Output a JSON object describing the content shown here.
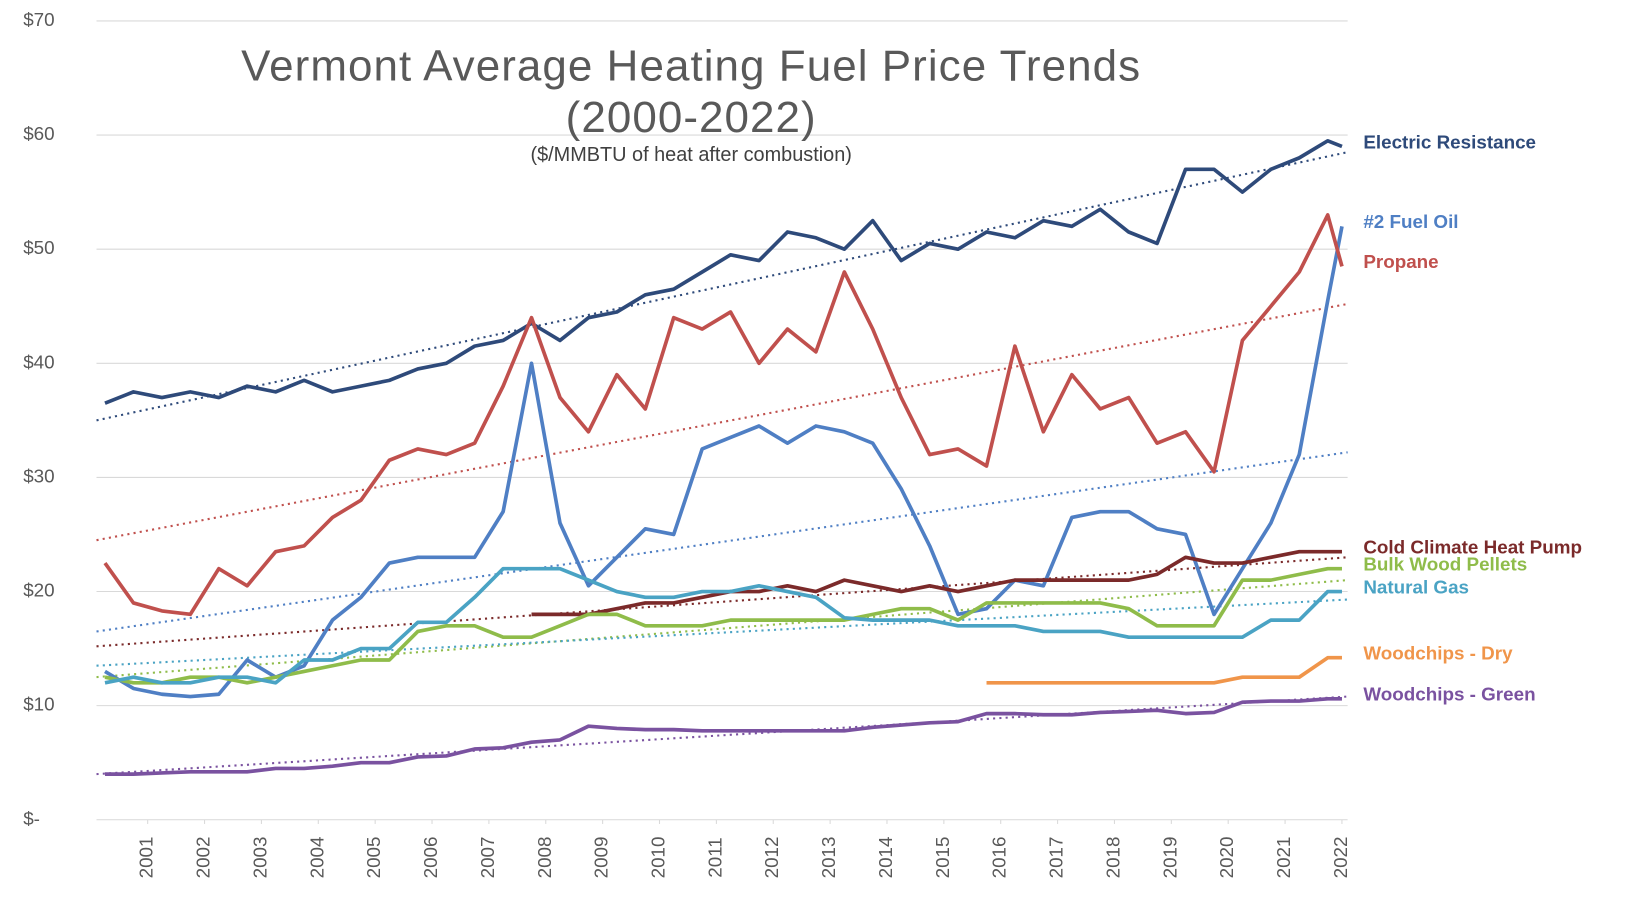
{
  "chart_data": {
    "type": "line",
    "title": [
      "Vermont Average  Heating Fuel Price Trends",
      "(2000-2022)"
    ],
    "subtitle": "($/MMBTU  of heat after combustion)",
    "x": [
      2000.25,
      2000.75,
      2001.25,
      2001.75,
      2002.25,
      2002.75,
      2003.25,
      2003.75,
      2004.25,
      2004.75,
      2005.25,
      2005.75,
      2006.25,
      2006.75,
      2007.25,
      2007.75,
      2008.25,
      2008.75,
      2009.25,
      2009.75,
      2010.25,
      2010.75,
      2011.25,
      2011.75,
      2012.25,
      2012.75,
      2013.25,
      2013.75,
      2014.25,
      2014.75,
      2015.25,
      2015.75,
      2016.25,
      2016.75,
      2017.25,
      2017.75,
      2018.25,
      2018.75,
      2019.25,
      2019.75,
      2020.25,
      2020.75,
      2021.25,
      2021.75,
      2022
    ],
    "xlim": [
      2000.1,
      2022.1
    ],
    "xticks": [
      2001,
      2002,
      2003,
      2004,
      2005,
      2006,
      2007,
      2008,
      2009,
      2010,
      2011,
      2012,
      2013,
      2014,
      2015,
      2016,
      2017,
      2018,
      2019,
      2020,
      2021,
      2022
    ],
    "ylim": [
      0,
      70
    ],
    "yticks": [
      {
        "value": 0,
        "label": "$-"
      },
      {
        "value": 10,
        "label": "$10"
      },
      {
        "value": 20,
        "label": "$20"
      },
      {
        "value": 30,
        "label": "$30"
      },
      {
        "value": 40,
        "label": "$40"
      },
      {
        "value": 50,
        "label": "$50"
      },
      {
        "value": 60,
        "label": "$60"
      },
      {
        "value": 70,
        "label": "$70"
      }
    ],
    "grid": true,
    "series": [
      {
        "name": "Electric Resistance",
        "color": "#2e4a7a",
        "trend": [
          35,
          58.5
        ],
        "values": [
          36.5,
          37.5,
          37,
          37.5,
          37,
          38,
          37.5,
          38.5,
          37.5,
          38,
          38.5,
          39.5,
          40,
          41.5,
          42,
          43.5,
          42,
          44,
          44.5,
          46,
          46.5,
          48,
          49.5,
          49,
          51.5,
          51,
          50,
          52.5,
          49,
          50.5,
          50,
          51.5,
          51,
          52.5,
          52,
          53.5,
          51.5,
          50.5,
          57,
          57,
          55,
          57,
          58,
          59.5,
          59
        ]
      },
      {
        "name": "#2 Fuel Oil",
        "color": "#4f7fc4",
        "trend": [
          16.5,
          32.2
        ],
        "values": [
          13,
          11.5,
          11,
          10.8,
          11,
          14,
          12.5,
          13.5,
          17.5,
          19.5,
          22.5,
          23,
          23,
          23,
          27,
          40,
          26,
          20.5,
          23,
          25.5,
          25,
          32.5,
          33.5,
          34.5,
          33,
          34.5,
          34,
          33,
          29,
          24,
          18,
          18.5,
          21,
          20.5,
          26.5,
          27,
          27,
          25.5,
          25,
          18,
          22,
          26,
          32,
          45.5,
          52
        ]
      },
      {
        "name": "Propane",
        "color": "#c0504d",
        "trend": [
          24.5,
          45.2
        ],
        "values": [
          22.5,
          19,
          18.3,
          18,
          22,
          20.5,
          23.5,
          24,
          26.5,
          28,
          31.5,
          32.5,
          32,
          33,
          38,
          44,
          37,
          34,
          39,
          36,
          44,
          43,
          44.5,
          40,
          43,
          41,
          48,
          43,
          37,
          32,
          32.5,
          31,
          41.5,
          34,
          39,
          36,
          37,
          33,
          34,
          30.5,
          42,
          45,
          48,
          53,
          48.5
        ]
      },
      {
        "name": "Cold Climate Heat Pump",
        "color": "#7b2a2a",
        "trend": [
          15.2,
          23
        ],
        "values": [
          null,
          null,
          null,
          null,
          null,
          null,
          null,
          null,
          null,
          null,
          null,
          null,
          null,
          null,
          null,
          18,
          18,
          18,
          18.5,
          19,
          19,
          19.5,
          20,
          20,
          20.5,
          20,
          21,
          20.5,
          20,
          20.5,
          20,
          20.5,
          21,
          21,
          21,
          21,
          21,
          21.5,
          23,
          22.5,
          22.5,
          23,
          23.5,
          23.5,
          23.5
        ]
      },
      {
        "name": "Bulk Wood Pellets",
        "color": "#8fbc4a",
        "trend": [
          12.5,
          21
        ],
        "values": [
          12.5,
          12,
          12,
          12.5,
          12.5,
          12,
          12.5,
          13,
          13.5,
          14,
          14,
          16.5,
          17,
          17,
          16,
          16,
          17,
          18,
          18,
          17,
          17,
          17,
          17.5,
          17.5,
          17.5,
          17.5,
          17.5,
          18,
          18.5,
          18.5,
          17.5,
          19,
          19,
          19,
          19,
          19,
          18.5,
          17,
          17,
          17,
          21,
          21,
          21.5,
          22,
          22
        ]
      },
      {
        "name": "Natural Gas",
        "color": "#4aa3c4",
        "trend": [
          13.5,
          19.3
        ],
        "values": [
          12,
          12.5,
          12,
          12,
          12.5,
          12.5,
          12,
          14,
          14,
          15,
          15,
          17.3,
          17.3,
          19.5,
          22,
          22,
          22,
          21,
          20,
          19.5,
          19.5,
          20,
          20,
          20.5,
          20,
          19.5,
          17.7,
          17.5,
          17.5,
          17.5,
          17,
          17,
          17,
          16.5,
          16.5,
          16.5,
          16,
          16,
          16,
          16,
          16,
          17.5,
          17.5,
          20,
          20
        ]
      },
      {
        "name": "Woodchips  - Dry",
        "color": "#f0954a",
        "values": [
          null,
          null,
          null,
          null,
          null,
          null,
          null,
          null,
          null,
          null,
          null,
          null,
          null,
          null,
          null,
          null,
          null,
          null,
          null,
          null,
          null,
          null,
          null,
          null,
          null,
          null,
          null,
          null,
          null,
          null,
          null,
          12,
          12,
          12,
          12,
          12,
          12,
          12,
          12,
          12,
          12.5,
          12.5,
          12.5,
          14.2,
          14.2
        ]
      },
      {
        "name": "Woodchips  - Green",
        "color": "#7a52a0",
        "trend": [
          4,
          10.8
        ],
        "values": [
          4,
          4,
          4.1,
          4.2,
          4.2,
          4.2,
          4.5,
          4.5,
          4.7,
          5,
          5,
          5.5,
          5.6,
          6.2,
          6.3,
          6.8,
          7,
          8.2,
          8,
          7.9,
          7.9,
          7.8,
          7.8,
          7.8,
          7.8,
          7.8,
          7.8,
          8.1,
          8.3,
          8.5,
          8.6,
          9.3,
          9.3,
          9.2,
          9.2,
          9.4,
          9.5,
          9.6,
          9.3,
          9.4,
          10.3,
          10.4,
          10.4,
          10.6,
          10.6
        ]
      }
    ]
  }
}
